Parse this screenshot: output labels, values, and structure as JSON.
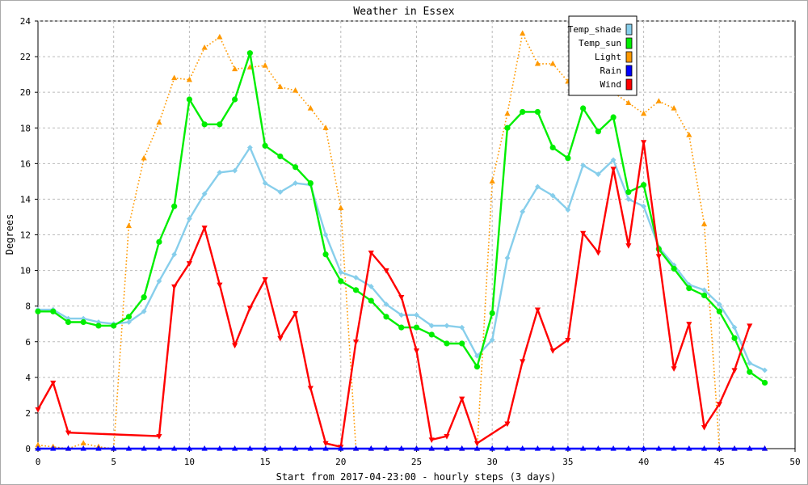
{
  "chart_data": {
    "type": "line",
    "title": "Weather in Essex",
    "xlabel": "Start from 2017-04-23:00 - hourly steps (3 days)",
    "ylabel": "Degrees",
    "xlim": [
      0,
      50
    ],
    "ylim": [
      0,
      24
    ],
    "x_ticks": [
      0,
      5,
      10,
      15,
      20,
      25,
      30,
      35,
      40,
      45,
      50
    ],
    "y_ticks": [
      0,
      2,
      4,
      6,
      8,
      10,
      12,
      14,
      16,
      18,
      20,
      22,
      24
    ],
    "x_tick_labels": [
      "0",
      "5",
      "10",
      "15",
      "20",
      "25",
      "30",
      "35",
      "40",
      "45",
      "50"
    ],
    "y_tick_labels": [
      "0",
      "2",
      "4",
      "6",
      "8",
      "10",
      "12",
      "14",
      "16",
      "18",
      "20",
      "22",
      "24"
    ],
    "grid": true,
    "legend_position": "top-right",
    "x": [
      0,
      1,
      2,
      3,
      4,
      5,
      6,
      7,
      8,
      9,
      10,
      11,
      12,
      13,
      14,
      15,
      16,
      17,
      18,
      19,
      20,
      21,
      22,
      23,
      24,
      25,
      26,
      27,
      28,
      29,
      30,
      31,
      32,
      33,
      34,
      35,
      36,
      37,
      38,
      39,
      40,
      41,
      42,
      43,
      44,
      45,
      46,
      47,
      48
    ],
    "series": [
      {
        "name": "Temp_shade",
        "color": "#87ceeb",
        "marker": "diamond",
        "line": "solid",
        "values": [
          7.8,
          7.8,
          7.3,
          7.3,
          7.1,
          7.0,
          7.1,
          7.7,
          9.4,
          10.9,
          12.9,
          14.3,
          15.5,
          15.6,
          16.9,
          14.9,
          14.4,
          14.9,
          14.8,
          12.0,
          9.9,
          9.6,
          9.1,
          8.1,
          7.5,
          7.5,
          6.9,
          6.9,
          6.8,
          5.2,
          6.1,
          10.7,
          13.3,
          14.7,
          14.2,
          13.4,
          15.9,
          15.4,
          16.2,
          14.0,
          13.6,
          11.3,
          10.3,
          9.2,
          8.9,
          8.1,
          6.8,
          4.8,
          4.4
        ]
      },
      {
        "name": "Temp_sun",
        "color": "#00ee00",
        "marker": "circle",
        "line": "solid",
        "values": [
          7.7,
          7.7,
          7.1,
          7.1,
          6.9,
          6.9,
          7.4,
          8.5,
          11.6,
          13.6,
          19.6,
          18.2,
          18.2,
          19.6,
          22.2,
          17.0,
          16.4,
          15.8,
          14.9,
          10.9,
          9.4,
          8.9,
          8.3,
          7.4,
          6.8,
          6.8,
          6.4,
          5.9,
          5.9,
          4.6,
          7.6,
          18.0,
          18.9,
          18.9,
          16.9,
          16.3,
          19.1,
          17.8,
          18.6,
          14.4,
          14.8,
          11.2,
          10.1,
          9.0,
          8.6,
          7.7,
          6.2,
          4.3,
          3.7
        ]
      },
      {
        "name": "Light",
        "color": "#ff9900",
        "marker": "triangle-up",
        "line": "dotted",
        "values": [
          0.2,
          0.1,
          0.0,
          0.3,
          0.1,
          0.0,
          12.5,
          16.3,
          18.3,
          20.8,
          20.7,
          22.5,
          23.1,
          21.3,
          21.4,
          21.5,
          20.3,
          20.1,
          19.1,
          18.0,
          13.5,
          0.0,
          0.0,
          0.0,
          0.0,
          0.0,
          0.0,
          0.0,
          0.0,
          0.0,
          15.0,
          18.8,
          23.3,
          21.6,
          21.6,
          20.6,
          20.6,
          20.0,
          20.0,
          19.4,
          18.8,
          19.5,
          19.1,
          17.6,
          12.6,
          0.0,
          0.0,
          0.0,
          0.0
        ]
      },
      {
        "name": "Rain",
        "color": "#0000ff",
        "marker": "triangle-up",
        "line": "solid",
        "values": [
          0,
          0,
          0,
          0,
          0,
          0,
          0,
          0,
          0,
          0,
          0,
          0,
          0,
          0,
          0,
          0,
          0,
          0,
          0,
          0,
          0,
          0,
          0,
          0,
          0,
          0,
          0,
          0,
          0,
          0,
          0,
          0,
          0,
          0,
          0,
          0,
          0,
          0,
          0,
          0,
          0,
          0,
          0,
          0,
          0,
          0,
          0,
          0,
          0
        ]
      },
      {
        "name": "Wind",
        "color": "#ff0000",
        "marker": "triangle-down",
        "line": "solid",
        "x": [
          0,
          1,
          2,
          8,
          9,
          10,
          11,
          12,
          13,
          14,
          15,
          16,
          17,
          18,
          19,
          20,
          21,
          22,
          23,
          24,
          25,
          26,
          27,
          28,
          29,
          31,
          32,
          33,
          34,
          35,
          36,
          37,
          38,
          39,
          40,
          41,
          42,
          43,
          44,
          45,
          46,
          47
        ],
        "values": [
          2.2,
          3.7,
          0.9,
          0.7,
          9.1,
          10.4,
          12.4,
          9.2,
          5.8,
          7.9,
          9.5,
          6.2,
          7.6,
          3.4,
          0.3,
          0.1,
          6.0,
          11.0,
          10.0,
          8.5,
          5.5,
          0.5,
          0.7,
          2.8,
          0.3,
          1.4,
          4.9,
          7.8,
          5.5,
          6.1,
          12.1,
          11.0,
          15.7,
          11.4,
          17.2,
          10.8,
          4.5,
          7.0,
          1.2,
          2.5,
          4.4,
          6.9
        ]
      }
    ]
  }
}
